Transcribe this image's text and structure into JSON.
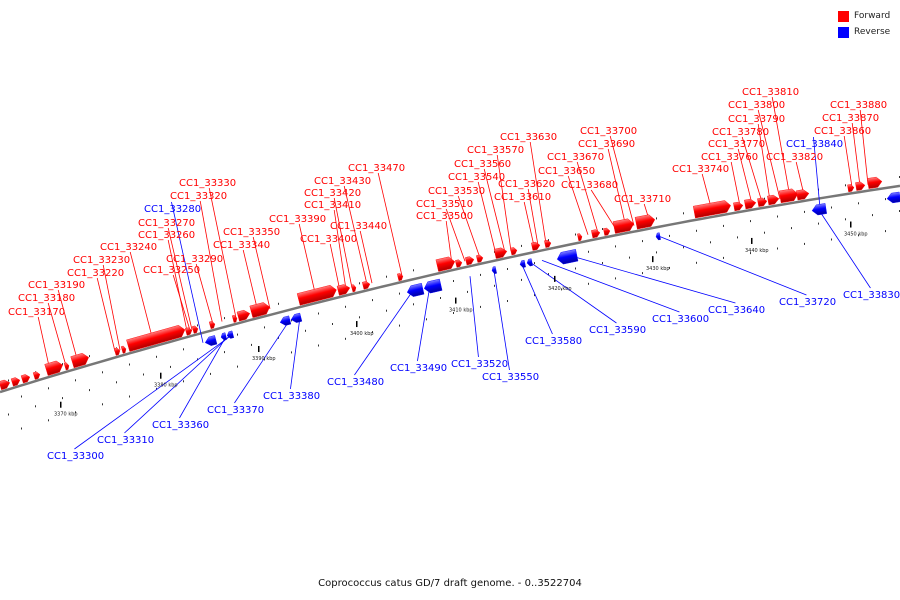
{
  "caption": "Coprococcus catus GD/7 draft genome. - 0..3522704",
  "legend": [
    {
      "label": "Forward",
      "color": "#ff0000"
    },
    {
      "label": "Reverse",
      "color": "#0000ff"
    }
  ],
  "colors": {
    "forward": "#ff0000",
    "reverse": "#0000ff",
    "backbone": "#777777"
  },
  "scale_labels": [
    "3370 kbp",
    "3380 kbp",
    "3390 kbp",
    "3400 kbp",
    "3410 kbp",
    "3420 kbp",
    "3430 kbp",
    "3440 kbp",
    "3450 kbp"
  ],
  "forward_genes": [
    "CC1_33170",
    "CC1_33180",
    "CC1_33190",
    "CC1_33220",
    "CC1_33230",
    "CC1_33240",
    "CC1_33250",
    "CC1_33260",
    "CC1_33270",
    "CC1_33290",
    "CC1_33320",
    "CC1_33330",
    "CC1_33340",
    "CC1_33350",
    "CC1_33390",
    "CC1_33400",
    "CC1_33410",
    "CC1_33420",
    "CC1_33430",
    "CC1_33440",
    "CC1_33470",
    "CC1_33500",
    "CC1_33510",
    "CC1_33530",
    "CC1_33540",
    "CC1_33560",
    "CC1_33570",
    "CC1_33610",
    "CC1_33620",
    "CC1_33630",
    "CC1_33650",
    "CC1_33670",
    "CC1_33680",
    "CC1_33690",
    "CC1_33700",
    "CC1_33710",
    "CC1_33740",
    "CC1_33760",
    "CC1_33770",
    "CC1_33780",
    "CC1_33790",
    "CC1_33800",
    "CC1_33810",
    "CC1_33820",
    "CC1_33860",
    "CC1_33870",
    "CC1_33880"
  ],
  "reverse_genes": [
    "CC1_33280",
    "CC1_33300",
    "CC1_33310",
    "CC1_33360",
    "CC1_33370",
    "CC1_33380",
    "CC1_33480",
    "CC1_33490",
    "CC1_33520",
    "CC1_33550",
    "CC1_33580",
    "CC1_33590",
    "CC1_33600",
    "CC1_33640",
    "CC1_33720",
    "CC1_33830",
    "CC1_33840"
  ]
}
